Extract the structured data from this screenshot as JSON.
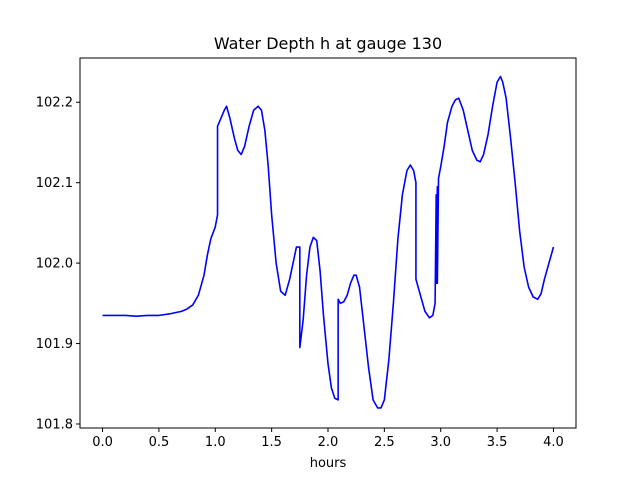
{
  "chart_data": {
    "type": "line",
    "title": "Water Depth h at gauge 130",
    "xlabel": "hours",
    "ylabel": "",
    "xlim": [
      -0.2,
      4.2
    ],
    "ylim": [
      101.795,
      102.255
    ],
    "x_ticks": [
      {
        "value": 0.0,
        "label": "0.0"
      },
      {
        "value": 0.5,
        "label": "0.5"
      },
      {
        "value": 1.0,
        "label": "1.0"
      },
      {
        "value": 1.5,
        "label": "1.5"
      },
      {
        "value": 2.0,
        "label": "2.0"
      },
      {
        "value": 2.5,
        "label": "2.5"
      },
      {
        "value": 3.0,
        "label": "3.0"
      },
      {
        "value": 3.5,
        "label": "3.5"
      },
      {
        "value": 4.0,
        "label": "4.0"
      }
    ],
    "y_ticks": [
      {
        "value": 101.8,
        "label": "101.8"
      },
      {
        "value": 101.9,
        "label": "101.9"
      },
      {
        "value": 102.0,
        "label": "102.0"
      },
      {
        "value": 102.1,
        "label": "102.1"
      },
      {
        "value": 102.2,
        "label": "102.2"
      }
    ],
    "grid": false,
    "series": [
      {
        "color": "#0000ff",
        "x": [
          0.0,
          0.1,
          0.2,
          0.3,
          0.4,
          0.5,
          0.6,
          0.7,
          0.75,
          0.8,
          0.85,
          0.9,
          0.93,
          0.96,
          1.0,
          1.02,
          1.02,
          1.05,
          1.08,
          1.1,
          1.13,
          1.17,
          1.2,
          1.23,
          1.26,
          1.3,
          1.34,
          1.38,
          1.41,
          1.44,
          1.47,
          1.5,
          1.54,
          1.58,
          1.62,
          1.66,
          1.69,
          1.72,
          1.75,
          1.75,
          1.78,
          1.81,
          1.84,
          1.87,
          1.9,
          1.93,
          1.96,
          2.0,
          2.03,
          2.06,
          2.09,
          2.09,
          2.11,
          2.14,
          2.17,
          2.2,
          2.23,
          2.25,
          2.28,
          2.32,
          2.36,
          2.4,
          2.44,
          2.47,
          2.5,
          2.54,
          2.58,
          2.62,
          2.66,
          2.7,
          2.73,
          2.76,
          2.78,
          2.78,
          2.82,
          2.86,
          2.9,
          2.93,
          2.95,
          2.96,
          2.96,
          2.97,
          2.97,
          2.98,
          2.98,
          3.0,
          3.03,
          3.06,
          3.1,
          3.13,
          3.16,
          3.2,
          3.24,
          3.28,
          3.32,
          3.35,
          3.38,
          3.42,
          3.46,
          3.5,
          3.53,
          3.55,
          3.58,
          3.62,
          3.66,
          3.7,
          3.74,
          3.78,
          3.82,
          3.86,
          3.89,
          3.92,
          3.95,
          3.98,
          4.0
        ],
        "y": [
          101.935,
          101.935,
          101.935,
          101.934,
          101.935,
          101.935,
          101.937,
          101.94,
          101.943,
          101.948,
          101.96,
          101.985,
          102.01,
          102.03,
          102.045,
          102.06,
          102.17,
          102.18,
          102.19,
          102.195,
          102.18,
          102.155,
          102.14,
          102.135,
          102.145,
          102.17,
          102.19,
          102.195,
          102.19,
          102.165,
          102.12,
          102.06,
          102.0,
          101.965,
          101.96,
          101.98,
          102.0,
          102.02,
          102.02,
          101.895,
          101.93,
          101.985,
          102.02,
          102.032,
          102.028,
          101.99,
          101.935,
          101.875,
          101.845,
          101.832,
          101.83,
          101.955,
          101.95,
          101.952,
          101.96,
          101.975,
          101.985,
          101.985,
          101.97,
          101.92,
          101.87,
          101.83,
          101.82,
          101.82,
          101.83,
          101.88,
          101.95,
          102.03,
          102.085,
          102.115,
          102.122,
          102.115,
          102.1,
          101.98,
          101.96,
          101.94,
          101.932,
          101.935,
          101.95,
          102.085,
          101.975,
          102.095,
          101.975,
          102.1,
          102.105,
          102.12,
          102.145,
          102.175,
          102.195,
          102.203,
          102.205,
          102.19,
          102.165,
          102.14,
          102.128,
          102.126,
          102.135,
          102.16,
          102.195,
          102.225,
          102.232,
          102.225,
          102.205,
          102.155,
          102.1,
          102.04,
          101.995,
          101.97,
          101.958,
          101.955,
          101.962,
          101.98,
          101.995,
          102.01,
          102.02
        ]
      }
    ]
  }
}
